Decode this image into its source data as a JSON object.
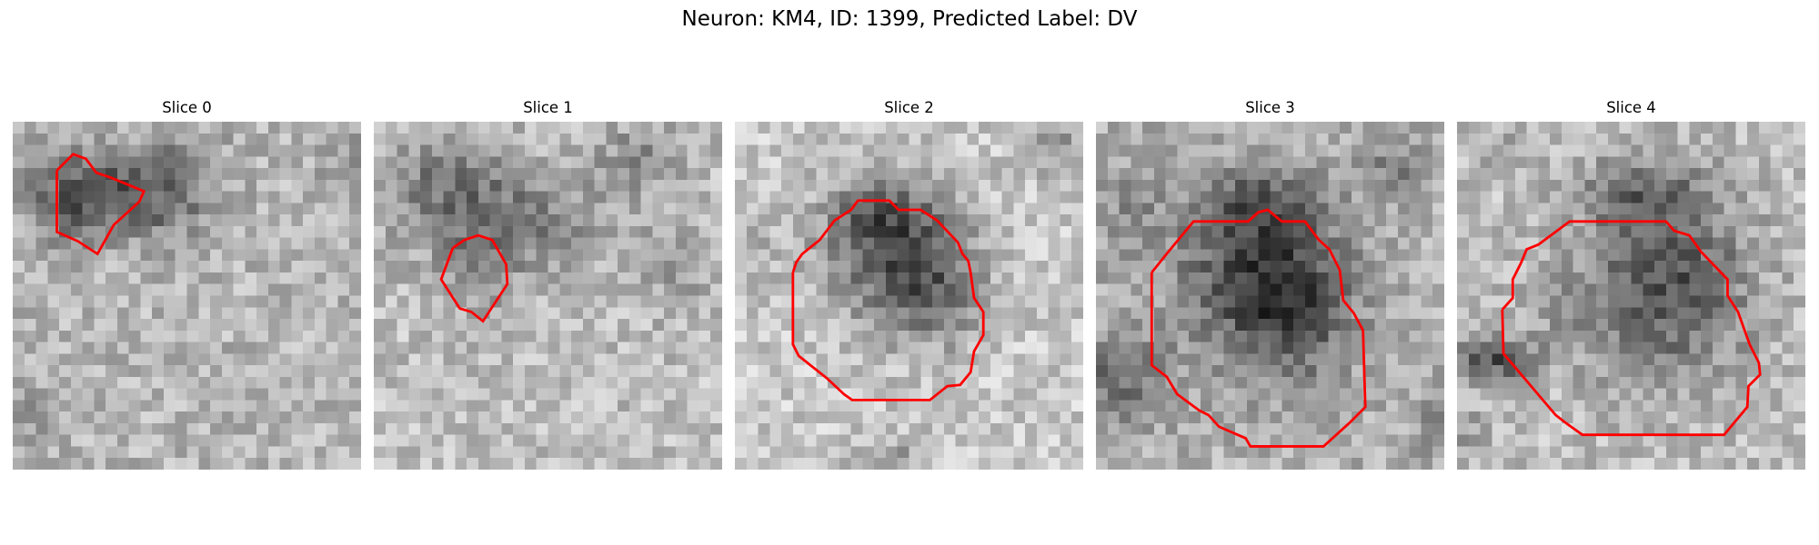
{
  "figure": {
    "title": "Neuron: KM4, ID: 1399, Predicted Label: DV"
  },
  "panels": [
    {
      "title": "Slice 0"
    },
    {
      "title": "Slice 1"
    },
    {
      "title": "Slice 2"
    },
    {
      "title": "Slice 3"
    },
    {
      "title": "Slice 4"
    }
  ],
  "colors": {
    "contour": "#ff0000",
    "colormap": "grayscale"
  }
}
